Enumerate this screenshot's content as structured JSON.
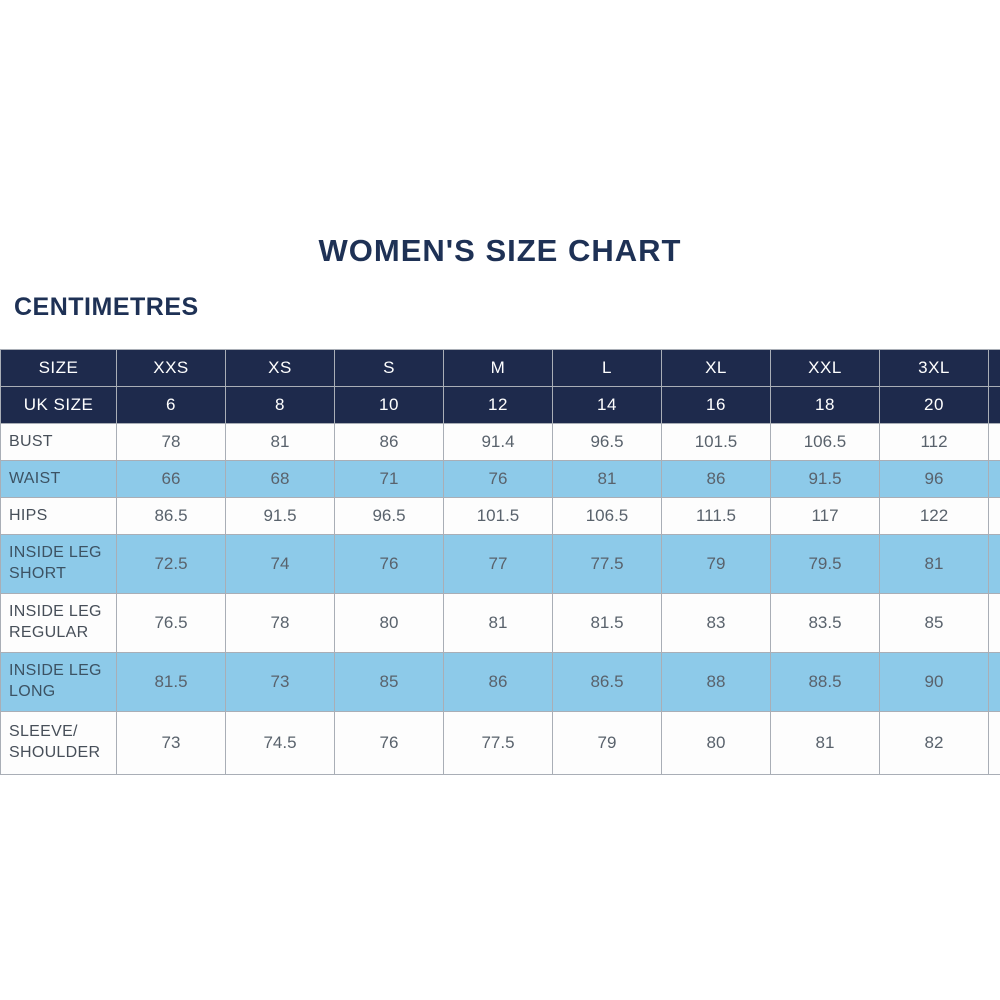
{
  "page": {
    "title": "WOMEN'S SIZE CHART",
    "unit_label": "CENTIMETRES"
  },
  "colors": {
    "header_navy": "#1e2a4c",
    "row_blue": "#8dcae9",
    "row_white": "#fdfdfd",
    "title_navy": "#1e3155",
    "grid_line": "#a9aeb6"
  },
  "table": {
    "header_rows": [
      {
        "label": "SIZE",
        "values": [
          "XXS",
          "XS",
          "S",
          "M",
          "L",
          "XL",
          "XXL",
          "3XL"
        ]
      },
      {
        "label": "UK SIZE",
        "values": [
          "6",
          "8",
          "10",
          "12",
          "14",
          "16",
          "18",
          "20"
        ]
      }
    ],
    "rows": [
      {
        "label": "BUST",
        "values": [
          "78",
          "81",
          "86",
          "91.4",
          "96.5",
          "101.5",
          "106.5",
          "112"
        ]
      },
      {
        "label": "WAIST",
        "values": [
          "66",
          "68",
          "71",
          "76",
          "81",
          "86",
          "91.5",
          "96"
        ]
      },
      {
        "label": "HIPS",
        "values": [
          "86.5",
          "91.5",
          "96.5",
          "101.5",
          "106.5",
          "111.5",
          "117",
          "122"
        ]
      },
      {
        "label": "INSIDE LEG SHORT",
        "values": [
          "72.5",
          "74",
          "76",
          "77",
          "77.5",
          "79",
          "79.5",
          "81"
        ]
      },
      {
        "label": "INSIDE LEG REGULAR",
        "values": [
          "76.5",
          "78",
          "80",
          "81",
          "81.5",
          "83",
          "83.5",
          "85"
        ]
      },
      {
        "label": "INSIDE LEG LONG",
        "values": [
          "81.5",
          "73",
          "85",
          "86",
          "86.5",
          "88",
          "88.5",
          "90"
        ]
      },
      {
        "label": "SLEEVE/ SHOULDER",
        "values": [
          "73",
          "74.5",
          "76",
          "77.5",
          "79",
          "80",
          "81",
          "82"
        ]
      }
    ]
  }
}
